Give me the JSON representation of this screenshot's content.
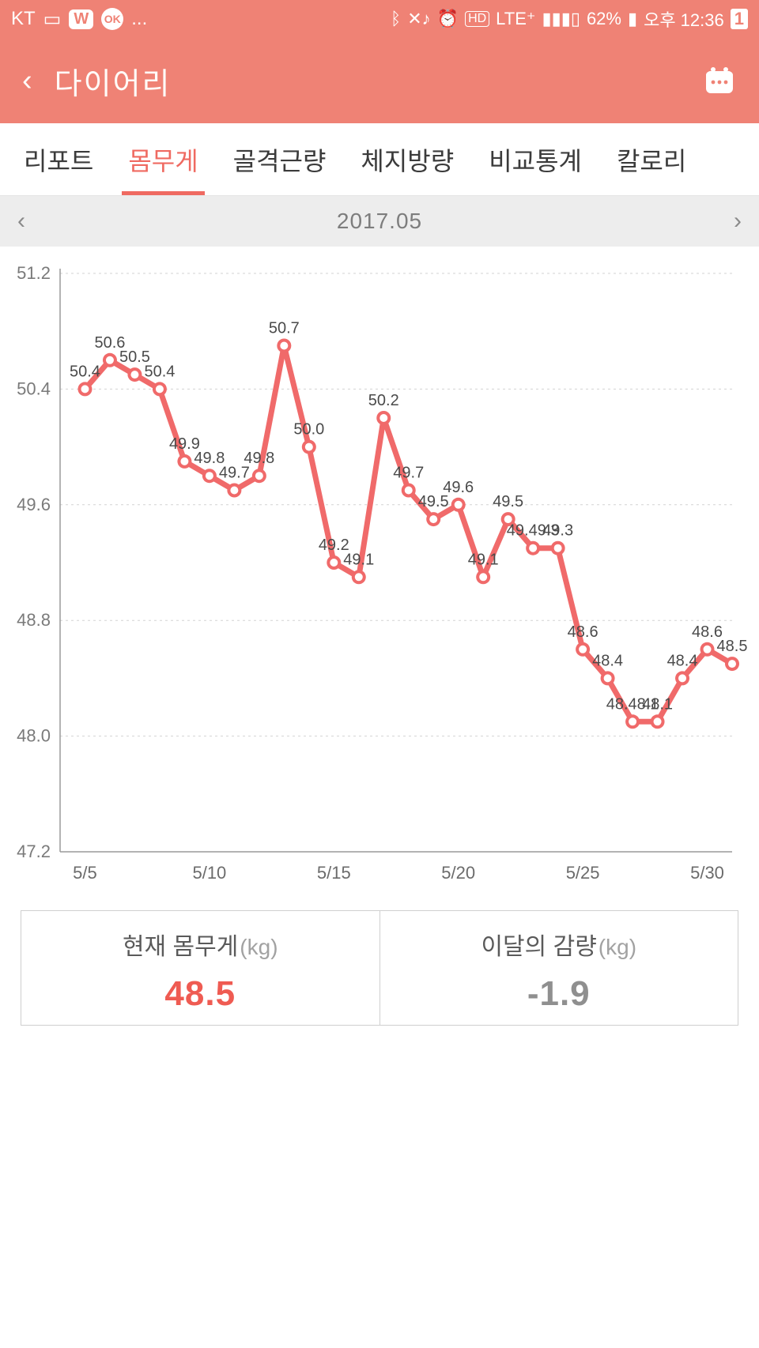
{
  "status": {
    "carrier": "KT",
    "battery_pct": "62%",
    "clock": "오후  12:36",
    "sim_badge": "1",
    "net_badge": "LTE⁺"
  },
  "header": {
    "title": "다이어리"
  },
  "tabs": [
    {
      "label": "리포트",
      "active": false
    },
    {
      "label": "몸무게",
      "active": true
    },
    {
      "label": "골격근량",
      "active": false
    },
    {
      "label": "체지방량",
      "active": false
    },
    {
      "label": "비교통계",
      "active": false
    },
    {
      "label": "칼로리",
      "active": false
    }
  ],
  "month": {
    "label": "2017.05"
  },
  "chart": {
    "type": "line",
    "ylim": [
      47.2,
      51.2
    ],
    "yticks": [
      47.2,
      48.0,
      48.8,
      49.6,
      50.4,
      51.2
    ],
    "x_range": [
      4,
      31
    ],
    "xticks": [
      5,
      10,
      15,
      20,
      25,
      30
    ],
    "xtick_labels": [
      "5/5",
      "5/10",
      "5/15",
      "5/20",
      "5/25",
      "5/30"
    ],
    "line_color": "#f06a6a",
    "line_width": 7,
    "marker_outer_color": "#f06a6a",
    "marker_inner_color": "#ffffff",
    "marker_outer_r": 9,
    "marker_inner_r": 5,
    "grid_color": "#d3d3d3",
    "axis_color": "#9a9a9a",
    "label_fontsize": 20,
    "tick_fontsize": 22,
    "label_color": "#4a4a4a",
    "tick_color": "#7a7a7a",
    "points": [
      {
        "day": 5,
        "v": 50.4,
        "show": true
      },
      {
        "day": 6,
        "v": 50.6,
        "show": true
      },
      {
        "day": 7,
        "v": 50.5,
        "show": true
      },
      {
        "day": 8,
        "v": 50.4,
        "show": true
      },
      {
        "day": 9,
        "v": 49.9,
        "show": true
      },
      {
        "day": 10,
        "v": 49.8,
        "show": true
      },
      {
        "day": 11,
        "v": 49.7,
        "show": true
      },
      {
        "day": 12,
        "v": 49.8,
        "show": true
      },
      {
        "day": 13,
        "v": 50.7,
        "show": true
      },
      {
        "day": 14,
        "v": 50.0,
        "show": true
      },
      {
        "day": 15,
        "v": 49.2,
        "show": true
      },
      {
        "day": 16,
        "v": 49.1,
        "show": true
      },
      {
        "day": 17,
        "v": 50.2,
        "show": true
      },
      {
        "day": 18,
        "v": 49.7,
        "show": true
      },
      {
        "day": 19,
        "v": 49.5,
        "show": true
      },
      {
        "day": 20,
        "v": 49.6,
        "show": true
      },
      {
        "day": 21,
        "v": 49.1,
        "show": true
      },
      {
        "day": 22,
        "v": 49.5,
        "show": true
      },
      {
        "day": 23,
        "v": 49.3,
        "show": true,
        "overlap_prefix": "49."
      },
      {
        "day": 24,
        "v": 49.3,
        "show": true
      },
      {
        "day": 25,
        "v": 48.6,
        "show": true
      },
      {
        "day": 26,
        "v": 48.4,
        "show": true
      },
      {
        "day": 27,
        "v": 48.1,
        "show": true,
        "overlap_prefix": "48."
      },
      {
        "day": 28,
        "v": 48.1,
        "show": true
      },
      {
        "day": 29,
        "v": 48.4,
        "show": true
      },
      {
        "day": 30,
        "v": 48.6,
        "show": true
      },
      {
        "day": 31,
        "v": 48.5,
        "show": true
      }
    ]
  },
  "summary": {
    "current_label": "현재 몸무게",
    "current_unit": "(kg)",
    "current_value": "48.5",
    "delta_label": "이달의 감량",
    "delta_unit": "(kg)",
    "delta_value": "-1.9"
  },
  "colors": {
    "header_bg": "#ef8275",
    "accent": "#ef6a61",
    "value_red": "#ef5b52",
    "grey_text": "#8f8f8f"
  }
}
